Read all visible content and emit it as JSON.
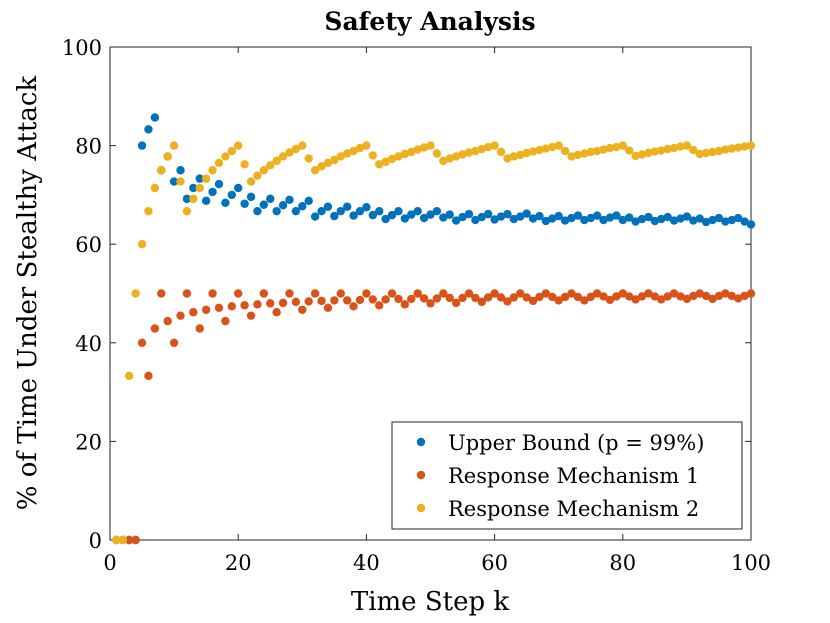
{
  "chart_data": {
    "type": "scatter",
    "title": "Safety Analysis",
    "xlabel": "Time Step k",
    "ylabel": "% of Time Under Stealthy Attack",
    "xlim": [
      0,
      100
    ],
    "ylim": [
      0,
      100
    ],
    "xticks": [
      0,
      20,
      40,
      60,
      80,
      100
    ],
    "yticks": [
      0,
      20,
      40,
      60,
      80,
      100
    ],
    "legend_position": "bottom-right",
    "series": [
      {
        "name": "Upper Bound (p = 99%)",
        "color": "#0072BD",
        "x": [
          1,
          2,
          3,
          4,
          5,
          6,
          7,
          8,
          9,
          10,
          11,
          12,
          13,
          14,
          15,
          16,
          17,
          18,
          19,
          20,
          21,
          22,
          23,
          24,
          25,
          26,
          27,
          28,
          29,
          30,
          31,
          32,
          33,
          34,
          35,
          36,
          37,
          38,
          39,
          40,
          41,
          42,
          43,
          44,
          45,
          46,
          47,
          48,
          49,
          50,
          51,
          52,
          53,
          54,
          55,
          56,
          57,
          58,
          59,
          60,
          61,
          62,
          63,
          64,
          65,
          66,
          67,
          68,
          69,
          70,
          71,
          72,
          73,
          74,
          75,
          76,
          77,
          78,
          79,
          80,
          81,
          82,
          83,
          84,
          85,
          86,
          87,
          88,
          89,
          90,
          91,
          92,
          93,
          94,
          95,
          96,
          97,
          98,
          99,
          100
        ],
        "y": [
          0,
          0,
          0,
          0,
          80,
          83.3,
          85.7,
          75,
          77.8,
          72.7,
          75,
          69.2,
          71.4,
          73.3,
          68.8,
          70.6,
          72.2,
          68.4,
          70,
          71.4,
          68.2,
          69.6,
          66.7,
          68,
          69.2,
          66.7,
          67.9,
          69,
          66.7,
          67.7,
          68.8,
          65.6,
          66.7,
          67.6,
          65.7,
          66.7,
          67.6,
          65.8,
          66.7,
          67.5,
          65.9,
          66.7,
          65.1,
          65.9,
          66.7,
          65.2,
          66,
          66.7,
          65.3,
          66,
          66.7,
          65.4,
          66,
          64.8,
          65.5,
          66.1,
          64.9,
          65.5,
          66.1,
          65,
          65.6,
          66.1,
          65.1,
          65.6,
          66.2,
          65.2,
          65.7,
          64.7,
          65.2,
          65.7,
          64.8,
          65.3,
          65.8,
          64.9,
          65.3,
          65.8,
          64.9,
          65.4,
          65.8,
          64.9,
          65.4,
          64.6,
          65.1,
          65.5,
          64.7,
          65.1,
          65.5,
          64.8,
          65.2,
          65.6,
          64.8,
          65.2,
          64.5,
          64.9,
          65.3,
          64.6,
          64.9,
          65.3,
          64.6,
          64
        ]
      },
      {
        "name": "Response Mechanism 1",
        "color": "#D95319",
        "x": [
          1,
          2,
          3,
          4,
          5,
          6,
          7,
          8,
          9,
          10,
          11,
          12,
          13,
          14,
          15,
          16,
          17,
          18,
          19,
          20,
          21,
          22,
          23,
          24,
          25,
          26,
          27,
          28,
          29,
          30,
          31,
          32,
          33,
          34,
          35,
          36,
          37,
          38,
          39,
          40,
          41,
          42,
          43,
          44,
          45,
          46,
          47,
          48,
          49,
          50,
          51,
          52,
          53,
          54,
          55,
          56,
          57,
          58,
          59,
          60,
          61,
          62,
          63,
          64,
          65,
          66,
          67,
          68,
          69,
          70,
          71,
          72,
          73,
          74,
          75,
          76,
          77,
          78,
          79,
          80,
          81,
          82,
          83,
          84,
          85,
          86,
          87,
          88,
          89,
          90,
          91,
          92,
          93,
          94,
          95,
          96,
          97,
          98,
          99,
          100
        ],
        "y": [
          0,
          0,
          0,
          0,
          40,
          33.3,
          42.9,
          50,
          44.4,
          40,
          45.5,
          50,
          46.2,
          42.9,
          46.7,
          50,
          47.1,
          44.4,
          47.4,
          50,
          47.6,
          45.5,
          47.8,
          50,
          48,
          46.2,
          48.1,
          50,
          48.3,
          46.7,
          48.4,
          50,
          48.5,
          47.1,
          48.6,
          50,
          48.6,
          47.4,
          48.7,
          50,
          48.8,
          47.6,
          48.8,
          50,
          48.9,
          47.8,
          48.9,
          50,
          49,
          48,
          49,
          50,
          49.1,
          48.1,
          49.1,
          50,
          49.1,
          48.3,
          49.2,
          50,
          49.2,
          48.4,
          49.2,
          50,
          49.2,
          48.5,
          49.3,
          50,
          49.3,
          48.6,
          49.3,
          50,
          49.3,
          48.6,
          49.3,
          50,
          49.4,
          48.7,
          49.4,
          50,
          49.4,
          48.8,
          49.4,
          50,
          49.4,
          48.8,
          49.4,
          50,
          49.4,
          48.9,
          49.5,
          50,
          49.5,
          48.9,
          49.5,
          50,
          49.5,
          49,
          49.5,
          50
        ]
      },
      {
        "name": "Response Mechanism 2",
        "color": "#EDB120",
        "x": [
          1,
          2,
          3,
          4,
          5,
          6,
          7,
          8,
          9,
          10,
          11,
          12,
          13,
          14,
          15,
          16,
          17,
          18,
          19,
          20,
          21,
          22,
          23,
          24,
          25,
          26,
          27,
          28,
          29,
          30,
          31,
          32,
          33,
          34,
          35,
          36,
          37,
          38,
          39,
          40,
          41,
          42,
          43,
          44,
          45,
          46,
          47,
          48,
          49,
          50,
          51,
          52,
          53,
          54,
          55,
          56,
          57,
          58,
          59,
          60,
          61,
          62,
          63,
          64,
          65,
          66,
          67,
          68,
          69,
          70,
          71,
          72,
          73,
          74,
          75,
          76,
          77,
          78,
          79,
          80,
          81,
          82,
          83,
          84,
          85,
          86,
          87,
          88,
          89,
          90,
          91,
          92,
          93,
          94,
          95,
          96,
          97,
          98,
          99,
          100
        ],
        "y": [
          0,
          0,
          33.3,
          50,
          60,
          66.7,
          71.4,
          75,
          77.8,
          80,
          72.7,
          66.7,
          69.2,
          71.4,
          73.3,
          75,
          76.5,
          77.8,
          78.9,
          80,
          76.2,
          72.7,
          73.9,
          75,
          76,
          76.9,
          77.8,
          78.6,
          79.3,
          80,
          77.4,
          75,
          75.8,
          76.5,
          77.1,
          77.8,
          78.4,
          78.9,
          79.5,
          80,
          78,
          76.2,
          76.7,
          77.3,
          77.8,
          78.3,
          78.7,
          79.2,
          79.6,
          80,
          78.4,
          76.9,
          77.4,
          77.8,
          78.2,
          78.6,
          78.9,
          79.3,
          79.7,
          80,
          78.7,
          77.4,
          77.8,
          78.1,
          78.5,
          78.8,
          79.1,
          79.4,
          79.7,
          80,
          78.9,
          77.8,
          78.1,
          78.4,
          78.7,
          78.9,
          79.2,
          79.5,
          79.7,
          80,
          79,
          77.9,
          78.2,
          78.5,
          78.8,
          79,
          79.3,
          79.5,
          79.8,
          80,
          79.1,
          78.3,
          78.5,
          78.7,
          78.9,
          79.2,
          79.4,
          79.6,
          79.8,
          80
        ]
      }
    ]
  }
}
